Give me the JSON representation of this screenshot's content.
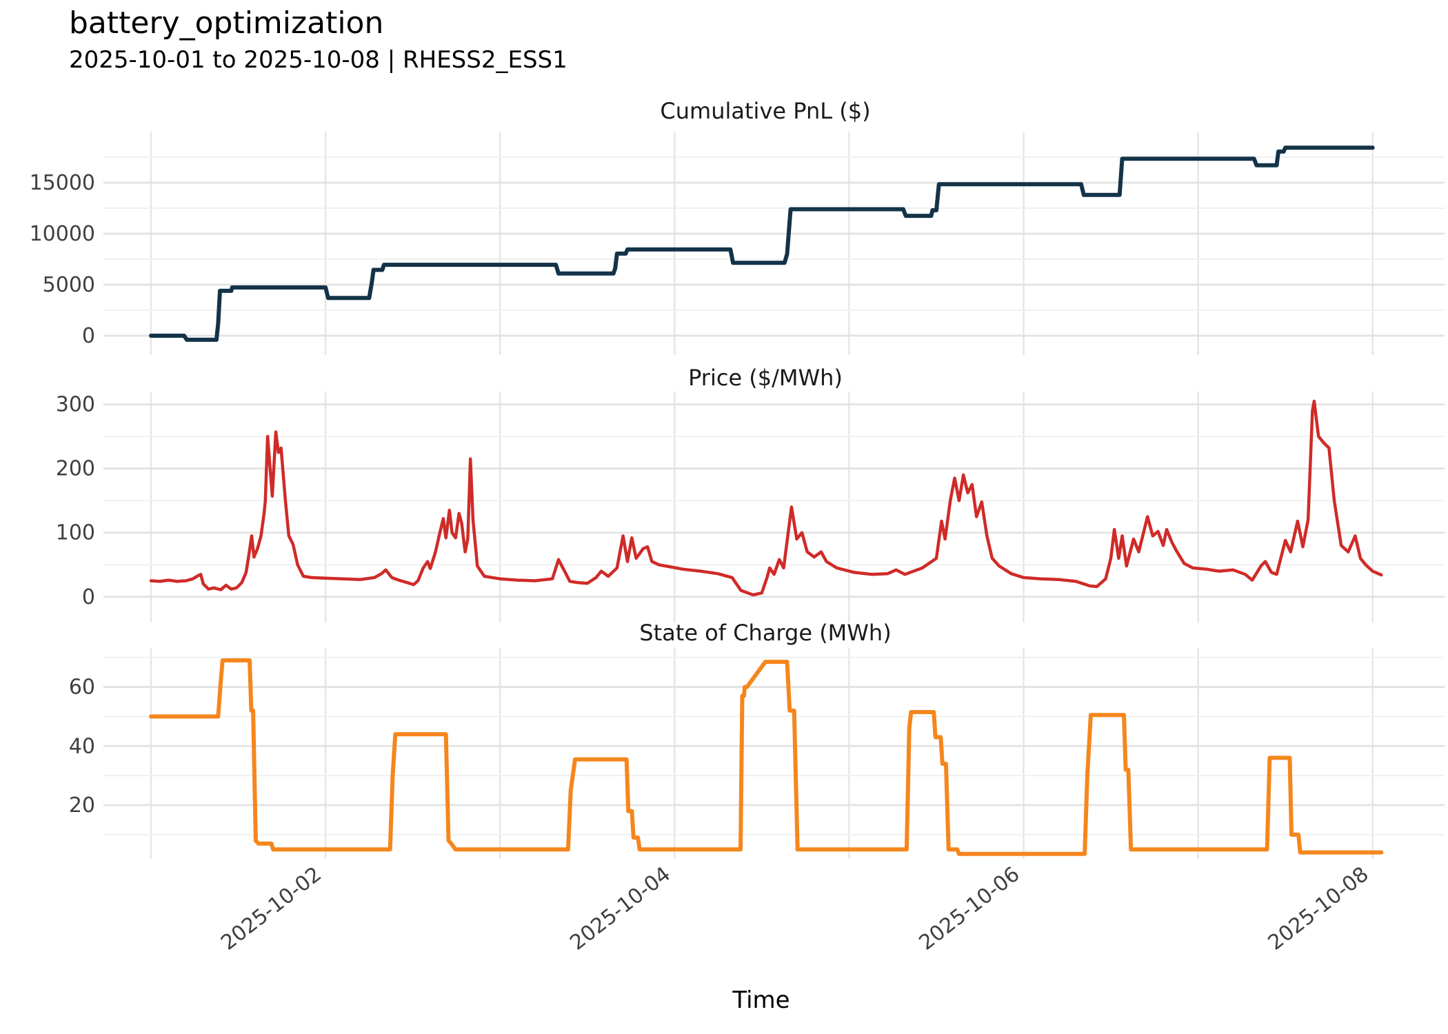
{
  "header": {
    "title": "battery_optimization",
    "subtitle": "2025-10-01 to 2025-10-08 | RHESS2_ESS1"
  },
  "xaxis": {
    "label": "Time",
    "start_date": "2025-10-01",
    "end_date": "2025-10-08",
    "tick_labels": [
      "2025-10-02",
      "2025-10-04",
      "2025-10-06",
      "2025-10-08"
    ],
    "tick_days": [
      1,
      3,
      5,
      7
    ],
    "gridline_days": [
      0,
      1,
      2,
      3,
      4,
      5,
      6,
      7
    ],
    "domain_days": [
      0,
      7
    ]
  },
  "style": {
    "background": "#ffffff",
    "major_grid_color": "#e2e2e2",
    "minor_grid_color": "#f0f0f0",
    "tick_label_color": "#3f3f3f",
    "title_color": "#000000",
    "panel_title_color": "#1a1a1a"
  },
  "chart_data": [
    {
      "type": "line",
      "subtype": "step",
      "title": "Cumulative PnL ($)",
      "color": "#143349",
      "ylim": [
        -1892,
        19932
      ],
      "yticks": [
        0,
        5000,
        10000,
        15000
      ],
      "ytick_labels": [
        "0",
        "5000",
        "10000",
        "15000"
      ],
      "minor_yticks": [
        -2500,
        2500,
        7500,
        12500,
        17500
      ],
      "legend": "none",
      "grid": true,
      "points": [
        [
          0.0,
          0
        ],
        [
          0.19,
          0
        ],
        [
          0.205,
          -400
        ],
        [
          0.375,
          -400
        ],
        [
          0.385,
          1200
        ],
        [
          0.395,
          4400
        ],
        [
          0.46,
          4400
        ],
        [
          0.465,
          4730
        ],
        [
          1.0,
          4730
        ],
        [
          1.015,
          3700
        ],
        [
          1.25,
          3700
        ],
        [
          1.265,
          5200
        ],
        [
          1.275,
          6450
        ],
        [
          1.325,
          6450
        ],
        [
          1.335,
          6950
        ],
        [
          2.32,
          6950
        ],
        [
          2.335,
          6100
        ],
        [
          2.65,
          6100
        ],
        [
          2.66,
          6600
        ],
        [
          2.67,
          8050
        ],
        [
          2.72,
          8050
        ],
        [
          2.73,
          8450
        ],
        [
          3.32,
          8450
        ],
        [
          3.335,
          7150
        ],
        [
          3.63,
          7150
        ],
        [
          3.645,
          8000
        ],
        [
          3.665,
          12400
        ],
        [
          4.31,
          12400
        ],
        [
          4.325,
          11750
        ],
        [
          4.47,
          11750
        ],
        [
          4.478,
          12300
        ],
        [
          4.5,
          12300
        ],
        [
          4.515,
          14850
        ],
        [
          5.33,
          14850
        ],
        [
          5.345,
          13800
        ],
        [
          5.55,
          13800
        ],
        [
          5.565,
          17350
        ],
        [
          6.32,
          17350
        ],
        [
          6.335,
          16700
        ],
        [
          6.45,
          16700
        ],
        [
          6.46,
          18050
        ],
        [
          6.49,
          18050
        ],
        [
          6.5,
          18430
        ],
        [
          7.0,
          18430
        ]
      ]
    },
    {
      "type": "line",
      "title": "Price ($/MWh)",
      "color": "#CF2B28",
      "ylim": [
        -40,
        320
      ],
      "yticks": [
        0,
        100,
        200,
        300
      ],
      "ytick_labels": [
        "0",
        "100",
        "200",
        "300"
      ],
      "minor_yticks": [
        50,
        150,
        250
      ],
      "legend": "none",
      "grid": true,
      "points": [
        [
          0.0,
          25
        ],
        [
          0.05,
          24
        ],
        [
          0.1,
          26
        ],
        [
          0.15,
          24
        ],
        [
          0.2,
          25
        ],
        [
          0.24,
          28
        ],
        [
          0.27,
          33
        ],
        [
          0.285,
          35
        ],
        [
          0.3,
          20
        ],
        [
          0.33,
          12
        ],
        [
          0.36,
          14
        ],
        [
          0.4,
          11
        ],
        [
          0.43,
          18
        ],
        [
          0.46,
          12
        ],
        [
          0.49,
          14
        ],
        [
          0.52,
          22
        ],
        [
          0.545,
          38
        ],
        [
          0.558,
          60
        ],
        [
          0.577,
          95
        ],
        [
          0.59,
          62
        ],
        [
          0.61,
          75
        ],
        [
          0.63,
          95
        ],
        [
          0.648,
          130
        ],
        [
          0.655,
          150
        ],
        [
          0.668,
          250
        ],
        [
          0.695,
          157
        ],
        [
          0.715,
          257
        ],
        [
          0.73,
          225
        ],
        [
          0.745,
          232
        ],
        [
          0.77,
          150
        ],
        [
          0.79,
          95
        ],
        [
          0.814,
          82
        ],
        [
          0.84,
          50
        ],
        [
          0.873,
          32
        ],
        [
          0.92,
          30
        ],
        [
          1.0,
          29
        ],
        [
          1.1,
          28
        ],
        [
          1.2,
          27
        ],
        [
          1.28,
          30
        ],
        [
          1.32,
          36
        ],
        [
          1.345,
          42
        ],
        [
          1.38,
          30
        ],
        [
          1.42,
          26
        ],
        [
          1.47,
          22
        ],
        [
          1.505,
          19
        ],
        [
          1.53,
          25
        ],
        [
          1.56,
          45
        ],
        [
          1.585,
          55
        ],
        [
          1.6,
          44
        ],
        [
          1.63,
          70
        ],
        [
          1.655,
          100
        ],
        [
          1.675,
          122
        ],
        [
          1.69,
          92
        ],
        [
          1.71,
          135
        ],
        [
          1.725,
          100
        ],
        [
          1.745,
          92
        ],
        [
          1.765,
          130
        ],
        [
          1.78,
          115
        ],
        [
          1.8,
          70
        ],
        [
          1.815,
          90
        ],
        [
          1.83,
          215
        ],
        [
          1.845,
          120
        ],
        [
          1.87,
          48
        ],
        [
          1.91,
          32
        ],
        [
          2.0,
          28
        ],
        [
          2.1,
          26
        ],
        [
          2.2,
          25
        ],
        [
          2.3,
          28
        ],
        [
          2.335,
          58
        ],
        [
          2.37,
          40
        ],
        [
          2.4,
          24
        ],
        [
          2.45,
          22
        ],
        [
          2.5,
          21
        ],
        [
          2.55,
          30
        ],
        [
          2.58,
          40
        ],
        [
          2.62,
          32
        ],
        [
          2.67,
          45
        ],
        [
          2.705,
          95
        ],
        [
          2.73,
          55
        ],
        [
          2.755,
          92
        ],
        [
          2.78,
          60
        ],
        [
          2.82,
          75
        ],
        [
          2.845,
          78
        ],
        [
          2.87,
          55
        ],
        [
          2.91,
          50
        ],
        [
          2.95,
          48
        ],
        [
          3.05,
          43
        ],
        [
          3.15,
          40
        ],
        [
          3.25,
          36
        ],
        [
          3.33,
          30
        ],
        [
          3.38,
          10
        ],
        [
          3.45,
          3
        ],
        [
          3.5,
          6
        ],
        [
          3.53,
          30
        ],
        [
          3.545,
          45
        ],
        [
          3.57,
          35
        ],
        [
          3.6,
          58
        ],
        [
          3.625,
          45
        ],
        [
          3.67,
          140
        ],
        [
          3.7,
          90
        ],
        [
          3.73,
          100
        ],
        [
          3.76,
          70
        ],
        [
          3.8,
          62
        ],
        [
          3.84,
          70
        ],
        [
          3.87,
          55
        ],
        [
          3.93,
          45
        ],
        [
          4.03,
          38
        ],
        [
          4.13,
          35
        ],
        [
          4.22,
          36
        ],
        [
          4.27,
          42
        ],
        [
          4.32,
          35
        ],
        [
          4.42,
          45
        ],
        [
          4.5,
          60
        ],
        [
          4.53,
          118
        ],
        [
          4.55,
          90
        ],
        [
          4.58,
          150
        ],
        [
          4.605,
          185
        ],
        [
          4.63,
          150
        ],
        [
          4.655,
          190
        ],
        [
          4.68,
          162
        ],
        [
          4.705,
          175
        ],
        [
          4.73,
          125
        ],
        [
          4.76,
          148
        ],
        [
          4.79,
          95
        ],
        [
          4.82,
          60
        ],
        [
          4.86,
          48
        ],
        [
          4.93,
          36
        ],
        [
          5.0,
          30
        ],
        [
          5.1,
          28
        ],
        [
          5.2,
          27
        ],
        [
          5.3,
          24
        ],
        [
          5.38,
          17
        ],
        [
          5.42,
          16
        ],
        [
          5.47,
          28
        ],
        [
          5.5,
          60
        ],
        [
          5.52,
          105
        ],
        [
          5.545,
          60
        ],
        [
          5.565,
          95
        ],
        [
          5.59,
          48
        ],
        [
          5.63,
          90
        ],
        [
          5.66,
          70
        ],
        [
          5.71,
          125
        ],
        [
          5.74,
          95
        ],
        [
          5.77,
          102
        ],
        [
          5.8,
          80
        ],
        [
          5.82,
          105
        ],
        [
          5.85,
          85
        ],
        [
          5.875,
          72
        ],
        [
          5.92,
          52
        ],
        [
          5.97,
          45
        ],
        [
          6.05,
          43
        ],
        [
          6.12,
          40
        ],
        [
          6.2,
          42
        ],
        [
          6.27,
          35
        ],
        [
          6.31,
          26
        ],
        [
          6.36,
          48
        ],
        [
          6.385,
          55
        ],
        [
          6.42,
          38
        ],
        [
          6.45,
          35
        ],
        [
          6.5,
          88
        ],
        [
          6.53,
          70
        ],
        [
          6.57,
          118
        ],
        [
          6.6,
          78
        ],
        [
          6.63,
          120
        ],
        [
          6.655,
          290
        ],
        [
          6.665,
          305
        ],
        [
          6.69,
          250
        ],
        [
          6.72,
          240
        ],
        [
          6.75,
          232
        ],
        [
          6.78,
          150
        ],
        [
          6.82,
          80
        ],
        [
          6.86,
          70
        ],
        [
          6.9,
          95
        ],
        [
          6.93,
          60
        ],
        [
          6.96,
          50
        ],
        [
          7.0,
          40
        ],
        [
          7.05,
          34
        ]
      ]
    },
    {
      "type": "line",
      "subtype": "step",
      "title": "State of Charge (MWh)",
      "color": "#F5861D",
      "ylim": [
        1.8,
        73.2
      ],
      "yticks": [
        20,
        40,
        60
      ],
      "ytick_labels": [
        "20",
        "40",
        "60"
      ],
      "minor_yticks": [
        10,
        30,
        50,
        70
      ],
      "legend": "none",
      "grid": true,
      "points": [
        [
          0.0,
          50
        ],
        [
          0.385,
          50
        ],
        [
          0.4,
          62
        ],
        [
          0.41,
          69
        ],
        [
          0.565,
          69
        ],
        [
          0.575,
          52
        ],
        [
          0.585,
          52
        ],
        [
          0.6,
          8
        ],
        [
          0.615,
          7
        ],
        [
          0.69,
          7
        ],
        [
          0.7,
          5
        ],
        [
          1.37,
          5
        ],
        [
          1.385,
          30
        ],
        [
          1.4,
          44
        ],
        [
          1.69,
          44
        ],
        [
          1.705,
          8
        ],
        [
          1.72,
          7
        ],
        [
          1.745,
          5
        ],
        [
          2.39,
          5
        ],
        [
          2.405,
          25
        ],
        [
          2.43,
          35.5
        ],
        [
          2.725,
          35.5
        ],
        [
          2.735,
          18
        ],
        [
          2.755,
          18
        ],
        [
          2.765,
          9
        ],
        [
          2.79,
          9
        ],
        [
          2.8,
          5
        ],
        [
          3.378,
          5
        ],
        [
          3.388,
          57
        ],
        [
          3.398,
          57
        ],
        [
          3.402,
          60
        ],
        [
          3.415,
          60
        ],
        [
          3.52,
          68.5
        ],
        [
          3.645,
          68.5
        ],
        [
          3.66,
          52
        ],
        [
          3.685,
          52
        ],
        [
          3.705,
          5
        ],
        [
          4.33,
          5
        ],
        [
          4.345,
          46
        ],
        [
          4.355,
          51.5
        ],
        [
          4.485,
          51.5
        ],
        [
          4.495,
          43
        ],
        [
          4.525,
          43
        ],
        [
          4.535,
          34
        ],
        [
          4.555,
          34
        ],
        [
          4.57,
          5
        ],
        [
          4.62,
          5
        ],
        [
          4.63,
          3.5
        ],
        [
          5.35,
          3.5
        ],
        [
          5.365,
          30
        ],
        [
          5.385,
          50.5
        ],
        [
          5.575,
          50.5
        ],
        [
          5.585,
          32
        ],
        [
          5.6,
          32
        ],
        [
          5.615,
          5
        ],
        [
          6.395,
          5
        ],
        [
          6.41,
          36
        ],
        [
          6.525,
          36
        ],
        [
          6.535,
          10
        ],
        [
          6.575,
          10
        ],
        [
          6.585,
          4
        ],
        [
          7.05,
          4
        ]
      ]
    }
  ]
}
